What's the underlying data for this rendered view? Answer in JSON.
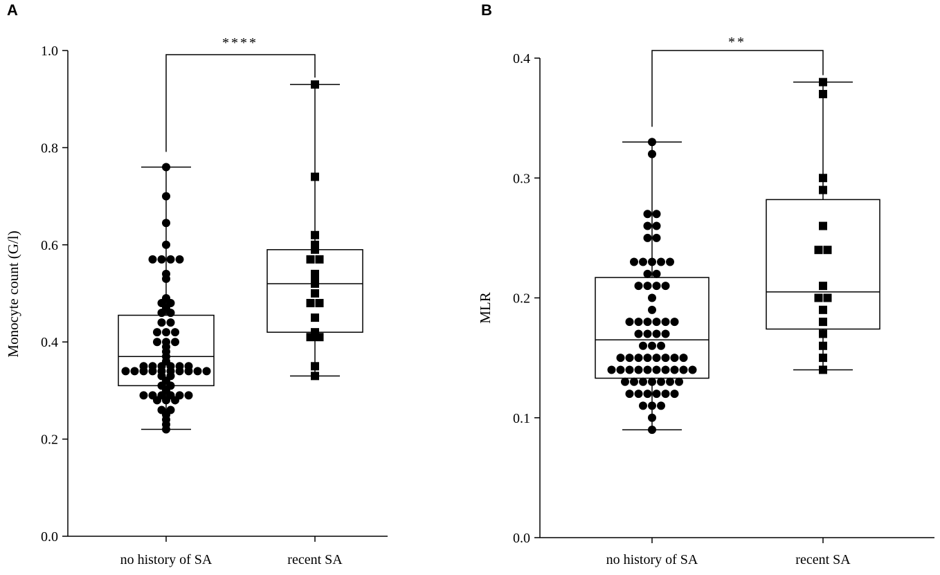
{
  "chart_data": [
    {
      "type": "box",
      "panel_label": "A",
      "ylabel": "Monocyte count (G/l)",
      "xlabel": "",
      "ylim": [
        0,
        1.0
      ],
      "yticks": [
        "0.0",
        "0.2",
        "0.4",
        "0.6",
        "0.8",
        "1.0"
      ],
      "categories": [
        "no history of SA",
        "recent SA"
      ],
      "significance": "****",
      "groups": [
        {
          "name": "no history of SA",
          "marker": "circle",
          "box": {
            "min": 0.22,
            "q1": 0.31,
            "median": 0.37,
            "q3": 0.455,
            "max": 0.76
          },
          "points": [
            0.76,
            0.7,
            0.645,
            0.6,
            0.57,
            0.57,
            0.57,
            0.57,
            0.54,
            0.53,
            0.49,
            0.48,
            0.48,
            0.47,
            0.46,
            0.46,
            0.44,
            0.44,
            0.42,
            0.42,
            0.42,
            0.4,
            0.4,
            0.4,
            0.39,
            0.38,
            0.37,
            0.36,
            0.35,
            0.35,
            0.35,
            0.35,
            0.35,
            0.35,
            0.34,
            0.34,
            0.34,
            0.34,
            0.34,
            0.34,
            0.34,
            0.34,
            0.34,
            0.34,
            0.33,
            0.33,
            0.32,
            0.31,
            0.31,
            0.3,
            0.29,
            0.29,
            0.29,
            0.29,
            0.29,
            0.29,
            0.28,
            0.28,
            0.28,
            0.26,
            0.26,
            0.25,
            0.24,
            0.23,
            0.22
          ]
        },
        {
          "name": "recent SA",
          "marker": "square",
          "box": {
            "min": 0.33,
            "q1": 0.42,
            "median": 0.52,
            "q3": 0.59,
            "max": 0.93
          },
          "points": [
            0.93,
            0.74,
            0.62,
            0.6,
            0.59,
            0.57,
            0.57,
            0.54,
            0.53,
            0.52,
            0.5,
            0.48,
            0.48,
            0.45,
            0.42,
            0.41,
            0.41,
            0.35,
            0.33
          ]
        }
      ]
    },
    {
      "type": "box",
      "panel_label": "B",
      "ylabel": "MLR",
      "xlabel": "",
      "ylim": [
        0,
        0.4
      ],
      "yticks": [
        "0.0",
        "0.1",
        "0.2",
        "0.3",
        "0.4"
      ],
      "categories": [
        "no history of SA",
        "recent SA"
      ],
      "significance": "**",
      "groups": [
        {
          "name": "no history of SA",
          "marker": "circle",
          "box": {
            "min": 0.09,
            "q1": 0.133,
            "median": 0.165,
            "q3": 0.217,
            "max": 0.33
          },
          "points": [
            0.33,
            0.32,
            0.27,
            0.27,
            0.26,
            0.26,
            0.25,
            0.25,
            0.23,
            0.23,
            0.23,
            0.23,
            0.23,
            0.22,
            0.22,
            0.21,
            0.21,
            0.21,
            0.21,
            0.2,
            0.19,
            0.18,
            0.18,
            0.18,
            0.18,
            0.18,
            0.18,
            0.17,
            0.17,
            0.17,
            0.17,
            0.16,
            0.16,
            0.16,
            0.15,
            0.15,
            0.15,
            0.15,
            0.15,
            0.15,
            0.15,
            0.15,
            0.14,
            0.14,
            0.14,
            0.14,
            0.14,
            0.14,
            0.14,
            0.14,
            0.14,
            0.14,
            0.13,
            0.13,
            0.13,
            0.13,
            0.13,
            0.13,
            0.13,
            0.12,
            0.12,
            0.12,
            0.12,
            0.12,
            0.12,
            0.11,
            0.11,
            0.11,
            0.1,
            0.09
          ]
        },
        {
          "name": "recent SA",
          "marker": "square",
          "box": {
            "min": 0.14,
            "q1": 0.174,
            "median": 0.205,
            "q3": 0.282,
            "max": 0.38
          },
          "points": [
            0.38,
            0.37,
            0.3,
            0.29,
            0.26,
            0.24,
            0.24,
            0.21,
            0.2,
            0.2,
            0.19,
            0.18,
            0.17,
            0.16,
            0.15,
            0.14
          ]
        }
      ]
    }
  ]
}
